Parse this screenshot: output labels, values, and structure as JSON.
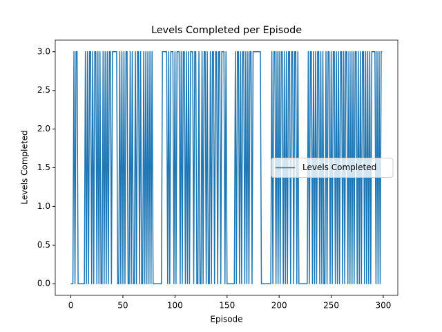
{
  "chart_data": {
    "type": "line",
    "title": "Levels Completed per Episode",
    "x_label": "Episode",
    "y_label": "Levels Completed",
    "x": [
      0,
      1,
      2,
      3,
      4,
      5,
      6,
      7,
      8,
      9,
      10,
      11,
      12,
      13,
      14,
      15,
      16,
      17,
      18,
      19,
      20,
      21,
      22,
      23,
      24,
      25,
      26,
      27,
      28,
      29,
      30,
      31,
      32,
      33,
      34,
      35,
      36,
      37,
      38,
      39,
      40,
      41,
      42,
      43,
      44,
      45,
      46,
      47,
      48,
      49,
      50,
      51,
      52,
      53,
      54,
      55,
      56,
      57,
      58,
      59,
      60,
      61,
      62,
      63,
      64,
      65,
      66,
      67,
      68,
      69,
      70,
      71,
      72,
      73,
      74,
      75,
      76,
      77,
      78,
      79,
      80,
      81,
      82,
      83,
      84,
      85,
      86,
      87,
      88,
      89,
      90,
      91,
      92,
      93,
      94,
      95,
      96,
      97,
      98,
      99,
      100,
      101,
      102,
      103,
      104,
      105,
      106,
      107,
      108,
      109,
      110,
      111,
      112,
      113,
      114,
      115,
      116,
      117,
      118,
      119,
      120,
      121,
      122,
      123,
      124,
      125,
      126,
      127,
      128,
      129,
      130,
      131,
      132,
      133,
      134,
      135,
      136,
      137,
      138,
      139,
      140,
      141,
      142,
      143,
      144,
      145,
      146,
      147,
      148,
      149,
      150,
      151,
      152,
      153,
      154,
      155,
      156,
      157,
      158,
      159,
      160,
      161,
      162,
      163,
      164,
      165,
      166,
      167,
      168,
      169,
      170,
      171,
      172,
      173,
      174,
      175,
      176,
      177,
      178,
      179,
      180,
      181,
      182,
      183,
      184,
      185,
      186,
      187,
      188,
      189,
      190,
      191,
      192,
      193,
      194,
      195,
      196,
      197,
      198,
      199,
      200,
      201,
      202,
      203,
      204,
      205,
      206,
      207,
      208,
      209,
      210,
      211,
      212,
      213,
      214,
      215,
      216,
      217,
      218,
      219,
      220,
      221,
      222,
      223,
      224,
      225,
      226,
      227,
      228,
      229,
      230,
      231,
      232,
      233,
      234,
      235,
      236,
      237,
      238,
      239,
      240,
      241,
      242,
      243,
      244,
      245,
      246,
      247,
      248,
      249,
      250,
      251,
      252,
      253,
      254,
      255,
      256,
      257,
      258,
      259,
      260,
      261,
      262,
      263,
      264,
      265,
      266,
      267,
      268,
      269,
      270,
      271,
      272,
      273,
      274,
      275,
      276,
      277,
      278,
      279,
      280,
      281,
      282,
      283,
      284,
      285,
      286,
      287,
      288,
      289,
      290,
      291,
      292,
      293,
      294,
      295,
      296,
      297,
      298,
      299
    ],
    "series": [
      {
        "name": "Levels Completed",
        "color": "#1f77b4",
        "values": [
          0,
          0,
          0,
          3,
          0,
          3,
          3,
          0,
          0,
          0,
          0,
          0,
          0,
          0,
          3,
          0,
          3,
          0,
          3,
          3,
          0,
          3,
          0,
          3,
          3,
          0,
          3,
          0,
          3,
          0,
          0,
          3,
          0,
          3,
          0,
          3,
          0,
          3,
          3,
          0,
          3,
          3,
          3,
          3,
          3,
          0,
          0,
          3,
          0,
          3,
          0,
          3,
          0,
          3,
          3,
          0,
          0,
          3,
          0,
          3,
          0,
          0,
          3,
          0,
          3,
          3,
          0,
          3,
          0,
          0,
          3,
          0,
          3,
          0,
          3,
          0,
          3,
          0,
          3,
          0,
          0,
          0,
          0,
          0,
          0,
          0,
          0,
          0,
          3,
          3,
          3,
          3,
          3,
          0,
          3,
          0,
          3,
          3,
          3,
          0,
          3,
          0,
          3,
          3,
          3,
          0,
          3,
          0,
          3,
          3,
          0,
          3,
          0,
          3,
          0,
          3,
          3,
          3,
          0,
          3,
          3,
          0,
          0,
          3,
          0,
          0,
          3,
          0,
          3,
          3,
          0,
          3,
          0,
          0,
          3,
          0,
          3,
          3,
          0,
          3,
          3,
          0,
          3,
          3,
          0,
          3,
          3,
          3,
          0,
          3,
          0,
          0,
          0,
          0,
          0,
          0,
          0,
          0,
          3,
          0,
          3,
          3,
          0,
          3,
          0,
          3,
          3,
          0,
          3,
          0,
          3,
          0,
          3,
          3,
          0,
          3,
          3,
          3,
          3,
          3,
          3,
          3,
          3,
          0,
          0,
          0,
          0,
          0,
          0,
          0,
          0,
          0,
          0,
          3,
          0,
          3,
          3,
          0,
          3,
          0,
          3,
          0,
          3,
          3,
          0,
          3,
          0,
          3,
          0,
          3,
          3,
          0,
          3,
          3,
          0,
          3,
          3,
          0,
          3,
          0,
          0,
          0,
          0,
          0,
          0,
          0,
          0,
          0,
          3,
          0,
          3,
          3,
          0,
          3,
          0,
          3,
          0,
          3,
          3,
          0,
          3,
          0,
          3,
          0,
          0,
          3,
          0,
          3,
          3,
          0,
          3,
          0,
          3,
          3,
          0,
          3,
          0,
          3,
          0,
          3,
          3,
          0,
          3,
          0,
          3,
          3,
          0,
          3,
          0,
          3,
          0,
          3,
          0,
          3,
          3,
          0,
          3,
          0,
          3,
          0,
          3,
          3,
          0,
          3,
          0,
          3,
          0,
          3,
          0,
          3,
          3,
          3,
          3,
          0,
          3,
          0,
          3,
          0,
          3,
          3
        ]
      }
    ],
    "xlim": [
      -14.95,
      313.95
    ],
    "xticks": [
      0,
      50,
      100,
      150,
      200,
      250,
      300
    ],
    "ylim": [
      -0.15,
      3.15
    ],
    "yticks": [
      {
        "value": 0,
        "label": "0.0"
      },
      {
        "value": 0.5,
        "label": "0.5"
      },
      {
        "value": 1,
        "label": "1.0"
      },
      {
        "value": 1.5,
        "label": "1.5"
      },
      {
        "value": 2,
        "label": "2.0"
      },
      {
        "value": 2.5,
        "label": "2.5"
      },
      {
        "value": 3,
        "label": "3.0"
      }
    ],
    "legend": "center right"
  }
}
